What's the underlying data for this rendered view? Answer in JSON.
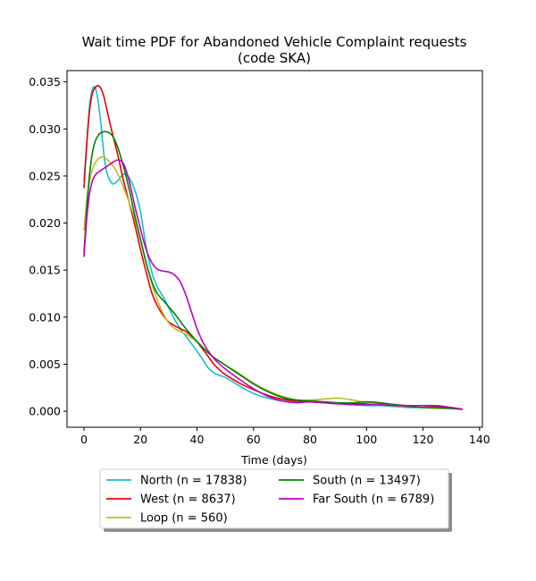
{
  "chart_data": {
    "type": "line",
    "title": "Wait time PDF for Abandoned Vehicle Complaint  requests",
    "subtitle": "(code SKA)",
    "xlabel": "Time (days)",
    "ylabel": "",
    "xlim": [
      -6,
      141
    ],
    "ylim": [
      -0.0017,
      0.0362
    ],
    "xticks": [
      0,
      20,
      40,
      60,
      80,
      100,
      120,
      140
    ],
    "xtick_labels": [
      "0",
      "20",
      "40",
      "60",
      "80",
      "100",
      "120",
      "140"
    ],
    "yticks": [
      0.0,
      0.005,
      0.01,
      0.015,
      0.02,
      0.025,
      0.03,
      0.035
    ],
    "ytick_labels": [
      "0.000",
      "0.005",
      "0.010",
      "0.015",
      "0.020",
      "0.025",
      "0.030",
      "0.035"
    ],
    "grid": false,
    "legend_position": "below",
    "legend_columns": 2,
    "series": [
      {
        "name": "North (n = 17838)",
        "color": "#17becf",
        "x": [
          0,
          1,
          2,
          3,
          4,
          5,
          6,
          7,
          8,
          10,
          12,
          14,
          16,
          18,
          20,
          22,
          24,
          26,
          28,
          30,
          32,
          34,
          36,
          38,
          40,
          42,
          44,
          46,
          48,
          50,
          55,
          60,
          65,
          70,
          75,
          80,
          85,
          90,
          95,
          100,
          105,
          110,
          115,
          120,
          125,
          130,
          134
        ],
        "y": [
          0.0245,
          0.0285,
          0.0325,
          0.0342,
          0.0344,
          0.033,
          0.0305,
          0.0275,
          0.0255,
          0.0242,
          0.0245,
          0.0252,
          0.0248,
          0.0235,
          0.0212,
          0.0175,
          0.0148,
          0.0132,
          0.0122,
          0.011,
          0.0098,
          0.0088,
          0.008,
          0.0072,
          0.0064,
          0.0055,
          0.0046,
          0.0041,
          0.0038,
          0.0036,
          0.0027,
          0.0019,
          0.0014,
          0.0011,
          0.001,
          0.001,
          0.0009,
          0.0008,
          0.0007,
          0.0006,
          0.0006,
          0.0005,
          0.0004,
          0.0004,
          0.0003,
          0.0003,
          0.0002
        ]
      },
      {
        "name": "West (n = 8637)",
        "color": "#e8000b",
        "x": [
          0,
          1,
          2,
          3,
          4,
          5,
          6,
          7,
          8,
          10,
          12,
          14,
          16,
          18,
          20,
          22,
          24,
          26,
          28,
          30,
          32,
          34,
          36,
          38,
          40,
          42,
          44,
          46,
          48,
          50,
          55,
          60,
          65,
          70,
          75,
          80,
          85,
          90,
          95,
          100,
          105,
          110,
          115,
          120,
          125,
          130,
          134
        ],
        "y": [
          0.0237,
          0.0285,
          0.032,
          0.0338,
          0.0344,
          0.0346,
          0.0343,
          0.0335,
          0.0322,
          0.0296,
          0.0272,
          0.0245,
          0.0222,
          0.0198,
          0.0172,
          0.0148,
          0.0126,
          0.0112,
          0.0102,
          0.0095,
          0.0091,
          0.0088,
          0.0085,
          0.008,
          0.0074,
          0.0066,
          0.0058,
          0.005,
          0.0044,
          0.0039,
          0.003,
          0.0023,
          0.0017,
          0.0013,
          0.0011,
          0.001,
          0.0009,
          0.0008,
          0.0008,
          0.0008,
          0.0008,
          0.0007,
          0.0006,
          0.0006,
          0.0005,
          0.0004,
          0.0002
        ]
      },
      {
        "name": "Loop (n = 560)",
        "color": "#bcbd22",
        "x": [
          0,
          1,
          2,
          3,
          4,
          5,
          6,
          7,
          8,
          10,
          12,
          14,
          16,
          18,
          20,
          22,
          24,
          26,
          28,
          30,
          32,
          34,
          36,
          38,
          40,
          42,
          44,
          46,
          48,
          50,
          55,
          60,
          65,
          70,
          75,
          80,
          85,
          90,
          95,
          100,
          105,
          110,
          115,
          120,
          125,
          130,
          134
        ],
        "y": [
          0.0192,
          0.0225,
          0.0245,
          0.0257,
          0.0264,
          0.0268,
          0.027,
          0.027,
          0.0268,
          0.0262,
          0.0252,
          0.0238,
          0.0222,
          0.0204,
          0.0182,
          0.0158,
          0.0136,
          0.0118,
          0.0104,
          0.0094,
          0.0088,
          0.0085,
          0.0082,
          0.0078,
          0.0074,
          0.0068,
          0.0062,
          0.0057,
          0.0053,
          0.0049,
          0.004,
          0.003,
          0.0022,
          0.0016,
          0.0012,
          0.0012,
          0.0013,
          0.0014,
          0.0012,
          0.0009,
          0.0007,
          0.0006,
          0.0005,
          0.0004,
          0.0003,
          0.0003,
          0.0002
        ]
      },
      {
        "name": "South (n = 13497)",
        "color": "#008000",
        "x": [
          0,
          1,
          2,
          3,
          4,
          5,
          6,
          7,
          8,
          10,
          12,
          14,
          16,
          18,
          20,
          22,
          24,
          26,
          28,
          30,
          32,
          34,
          36,
          38,
          40,
          42,
          44,
          46,
          48,
          50,
          55,
          60,
          65,
          70,
          75,
          80,
          85,
          90,
          95,
          100,
          105,
          110,
          115,
          120,
          125,
          130,
          134
        ],
        "y": [
          0.0168,
          0.0215,
          0.0252,
          0.0275,
          0.0287,
          0.0293,
          0.0296,
          0.0297,
          0.0297,
          0.0293,
          0.028,
          0.026,
          0.0236,
          0.0208,
          0.0183,
          0.0158,
          0.0138,
          0.0125,
          0.0118,
          0.0111,
          0.0104,
          0.0096,
          0.0088,
          0.0081,
          0.0074,
          0.0068,
          0.0062,
          0.0057,
          0.0053,
          0.0049,
          0.0039,
          0.0029,
          0.0021,
          0.0015,
          0.0012,
          0.0011,
          0.001,
          0.0009,
          0.0009,
          0.001,
          0.0009,
          0.0007,
          0.0005,
          0.0004,
          0.0004,
          0.0003,
          0.0002
        ]
      },
      {
        "name": "Far South (n = 6789)",
        "color": "#bf00bf",
        "x": [
          0,
          1,
          2,
          3,
          4,
          5,
          6,
          7,
          8,
          10,
          12,
          14,
          16,
          18,
          20,
          22,
          24,
          26,
          28,
          30,
          32,
          34,
          36,
          38,
          40,
          42,
          44,
          46,
          48,
          50,
          55,
          60,
          65,
          70,
          75,
          80,
          85,
          90,
          95,
          100,
          105,
          110,
          115,
          120,
          125,
          130,
          134
        ],
        "y": [
          0.0164,
          0.0205,
          0.0232,
          0.0245,
          0.0251,
          0.0254,
          0.0256,
          0.0258,
          0.026,
          0.0264,
          0.0267,
          0.0263,
          0.0245,
          0.0218,
          0.0194,
          0.0172,
          0.0158,
          0.0151,
          0.0149,
          0.0148,
          0.0145,
          0.0138,
          0.0124,
          0.0106,
          0.0088,
          0.0074,
          0.0064,
          0.0056,
          0.005,
          0.0045,
          0.0034,
          0.0024,
          0.0016,
          0.0011,
          0.0009,
          0.001,
          0.0009,
          0.0008,
          0.0007,
          0.0007,
          0.0007,
          0.0006,
          0.0006,
          0.0006,
          0.0006,
          0.0004,
          0.0002
        ]
      }
    ]
  }
}
